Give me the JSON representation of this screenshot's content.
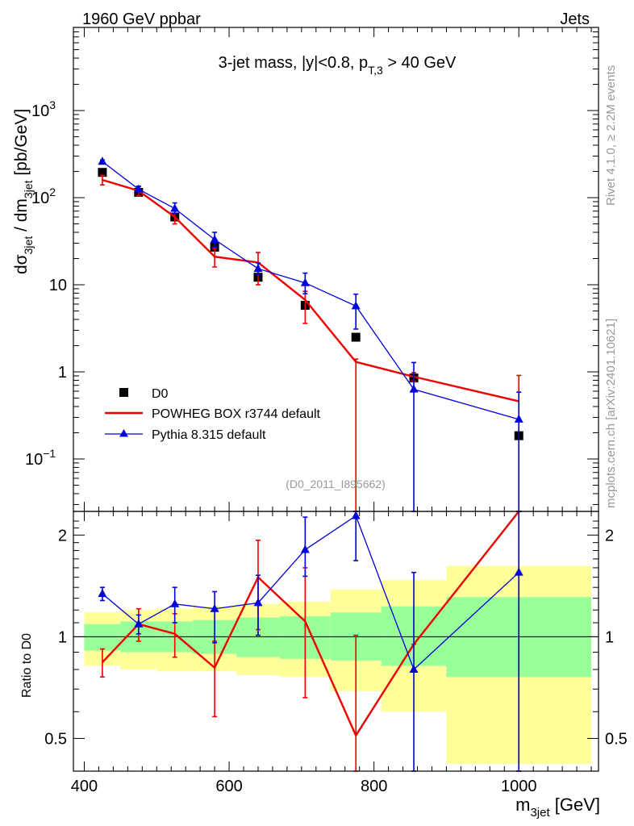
{
  "header": {
    "left": "1960 GeV ppbar",
    "right": "Jets"
  },
  "side_labels": {
    "rivet": "Rivet 4.1.0, ≥ 2.2M events",
    "mcplots": "mcplots.cern.ch [arXiv:2401.10621]"
  },
  "chart_data": {
    "type": "scatter",
    "title": "3-jet mass, |y|<0.8, p_T,3 > 40 GeV",
    "analysis_id": "(D0_2011_I895662)",
    "xlabel": "m_3jet [GeV]",
    "ylabel": "dσ_3jet / dm_3jet [pb/GeV]",
    "ratio_ylabel": "Ratio to D0",
    "xlim": [
      385,
      1110
    ],
    "ylim_log": [
      0.025,
      9000
    ],
    "ratio_ylim": [
      0.4,
      2.35
    ],
    "x_ticks": [
      "400",
      "600",
      "800",
      "1000"
    ],
    "x_tick_values": [
      400,
      600,
      800,
      1000
    ],
    "y_ticks_main": [
      {
        "value": 1000,
        "base": "10",
        "exp": "3"
      },
      {
        "value": 100,
        "base": "10",
        "exp": "2"
      },
      {
        "value": 10,
        "label": "10"
      },
      {
        "value": 1,
        "label": "1"
      },
      {
        "value": 0.1,
        "base": "10",
        "exp": "−1"
      }
    ],
    "y_ticks_ratio": [
      {
        "value": 2,
        "label": "2"
      },
      {
        "value": 1,
        "label": "1"
      },
      {
        "value": 0.5,
        "label": "0.5"
      }
    ],
    "x": [
      425,
      475,
      525,
      580,
      640,
      705,
      775,
      855,
      1000
    ],
    "bins": [
      400,
      450,
      500,
      550,
      610,
      670,
      740,
      810,
      900,
      1100
    ],
    "series": [
      {
        "name": "D0",
        "color": "#000000",
        "marker": "square",
        "values": [
          195,
          115,
          60,
          27,
          12.2,
          5.8,
          2.5,
          0.85,
          0.185
        ]
      },
      {
        "name": "POWHEG BOX r3744 default",
        "color": "#ee0000",
        "marker": "line",
        "values": [
          160,
          120,
          60,
          21,
          18,
          6.7,
          1.3,
          0.88,
          0.46
        ],
        "err_low": [
          20,
          15,
          10,
          5,
          8,
          3.1,
          1.3,
          0.1,
          0.46
        ],
        "err_high": [
          20,
          15,
          10,
          5,
          5.5,
          1.7,
          0.1,
          0.1,
          0.45
        ],
        "ratio": [
          0.84,
          1.09,
          1.02,
          0.81,
          1.5,
          1.11,
          0.51,
          0.95,
          2.35
        ],
        "ratio_err_low": [
          0.08,
          0.12,
          0.15,
          0.23,
          0.45,
          0.45,
          0.2,
          0,
          1.95
        ],
        "ratio_err_high": [
          0.08,
          0.12,
          0.15,
          0.16,
          0.43,
          0.49,
          0.5,
          0,
          0
        ]
      },
      {
        "name": "Pythia 8.315 default",
        "color": "#0000dd",
        "marker": "triangle",
        "values": [
          260,
          125,
          75,
          33,
          15.3,
          10.5,
          5.7,
          0.63,
          0.285
        ],
        "err_low": [
          10,
          8,
          9,
          6,
          2.3,
          2.6,
          2.6,
          0.61,
          0.28
        ],
        "err_high": [
          10,
          10,
          12,
          7,
          2.5,
          3.1,
          2.1,
          0.65,
          0.3
        ],
        "ratio": [
          1.34,
          1.09,
          1.25,
          1.21,
          1.26,
          1.81,
          2.28,
          0.8,
          1.55
        ],
        "ratio_err_low": [
          0.06,
          0.07,
          0.15,
          0.25,
          0.25,
          0.3,
          0.6,
          0.45,
          1.15
        ],
        "ratio_err_high": [
          0.06,
          0.07,
          0.15,
          0.15,
          0.26,
          0.45,
          0.5,
          0.75,
          0.8
        ]
      }
    ],
    "uncertainty_bands": {
      "inner_color": "#99ff99",
      "outer_color": "#ffff99",
      "inner_low": [
        0.91,
        0.9,
        0.9,
        0.89,
        0.87,
        0.86,
        0.85,
        0.82,
        0.76
      ],
      "inner_high": [
        1.09,
        1.11,
        1.11,
        1.12,
        1.14,
        1.15,
        1.18,
        1.23,
        1.31
      ],
      "outer_low": [
        0.82,
        0.8,
        0.79,
        0.79,
        0.77,
        0.76,
        0.69,
        0.6,
        0.42
      ],
      "outer_high": [
        1.18,
        1.2,
        1.21,
        1.23,
        1.25,
        1.27,
        1.38,
        1.47,
        1.62
      ]
    },
    "legend": {
      "position": "middle-left",
      "entries": [
        "D0",
        "POWHEG BOX r3744 default",
        "Pythia 8.315 default"
      ]
    }
  }
}
